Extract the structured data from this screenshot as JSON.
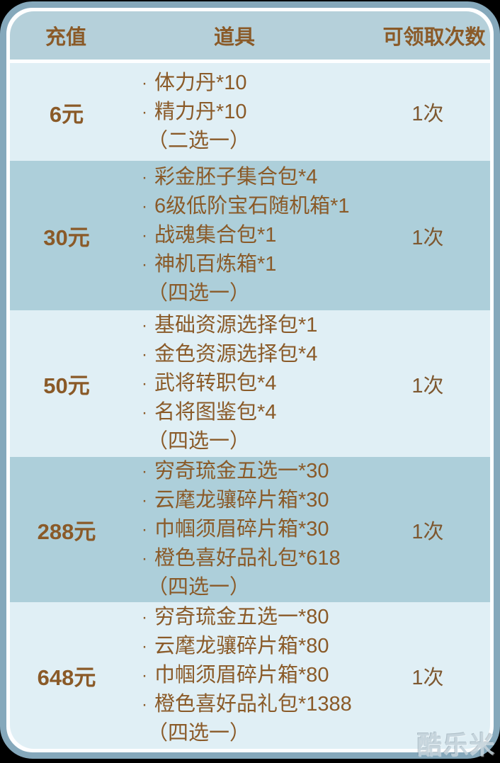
{
  "table": {
    "bullet": "·",
    "headers": [
      "充值",
      "道具",
      "可领取次数"
    ],
    "rows": [
      {
        "price": "6元",
        "items": [
          "体力丹*10",
          "精力丹*10"
        ],
        "note": "（二选一）",
        "claims": "1次"
      },
      {
        "price": "30元",
        "items": [
          "彩金胚子集合包*4",
          "6级低阶宝石随机箱*1",
          "战魂集合包*1",
          "神机百炼箱*1"
        ],
        "note": "（四选一）",
        "claims": "1次"
      },
      {
        "price": "50元",
        "items": [
          "基础资源选择包*1",
          "金色资源选择包*4",
          "武将转职包*4",
          "名将图鉴包*4"
        ],
        "note": "（四选一）",
        "claims": "1次"
      },
      {
        "price": "288元",
        "items": [
          "穷奇琉金五选一*30",
          "云麾龙骧碎片箱*30",
          "巾帼须眉碎片箱*30",
          "橙色喜好品礼包*618"
        ],
        "note": "（四选一）",
        "claims": "1次"
      },
      {
        "price": "648元",
        "items": [
          "穷奇琉金五选一*80",
          "云麾龙骧碎片箱*80",
          "巾帼须眉碎片箱*80",
          "橙色喜好品礼包*1388"
        ],
        "note": "（四选一）",
        "claims": "1次"
      }
    ]
  },
  "watermark": "酷乐米",
  "colors": {
    "border_band": "#85a8bb",
    "inner_ring": "#fdfeff",
    "header_bg": "#b5d0da",
    "row_dark_bg": "#adcfda",
    "row_light_bg": "#e0eff5",
    "text_brown": "#8a5a28",
    "outside_bg": "#000000",
    "watermark_color": "#c3d2da"
  },
  "chart_data": {
    "type": "table",
    "title": "",
    "columns": [
      "充值",
      "道具",
      "可领取次数"
    ],
    "rows": [
      [
        "6元",
        "体力丹*10；精力丹*10（二选一）",
        "1次"
      ],
      [
        "30元",
        "彩金胚子集合包*4；6级低阶宝石随机箱*1；战魂集合包*1；神机百炼箱*1（四选一）",
        "1次"
      ],
      [
        "50元",
        "基础资源选择包*1；金色资源选择包*4；武将转职包*4；名将图鉴包*4（四选一）",
        "1次"
      ],
      [
        "288元",
        "穷奇琉金五选一*30；云麾龙骧碎片箱*30；巾帼须眉碎片箱*30；橙色喜好品礼包*618（四选一）",
        "1次"
      ],
      [
        "648元",
        "穷奇琉金五选一*80；云麾龙骧碎片箱*80；巾帼须眉碎片箱*80；橙色喜好品礼包*1388（四选一）",
        "1次"
      ]
    ]
  }
}
